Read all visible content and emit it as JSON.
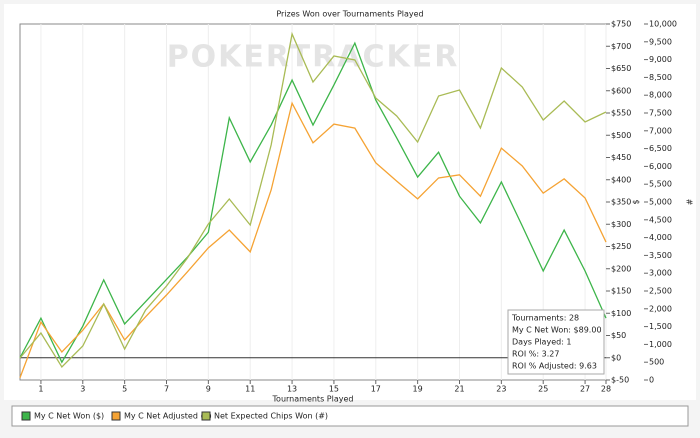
{
  "chart_data": {
    "type": "line",
    "title": "Prizes Won over Tournaments Played",
    "watermark": "POKERTRACKER",
    "x_label": "Tournaments Played",
    "y_label": "$",
    "y2_label": "#",
    "x": [
      0,
      1,
      2,
      3,
      4,
      5,
      6,
      7,
      8,
      9,
      10,
      11,
      12,
      13,
      14,
      15,
      16,
      17,
      18,
      19,
      20,
      21,
      22,
      23,
      24,
      25,
      26,
      27,
      28
    ],
    "xlim": [
      0,
      28
    ],
    "xticks": [
      1,
      3,
      5,
      7,
      9,
      11,
      13,
      15,
      17,
      19,
      21,
      23,
      25,
      27,
      28
    ],
    "ylim": [
      -50,
      750
    ],
    "yticks": [
      {
        "value": -50,
        "label": "$-50"
      },
      {
        "value": 0,
        "label": "$0"
      },
      {
        "value": 50,
        "label": "$50"
      },
      {
        "value": 100,
        "label": "$100"
      },
      {
        "value": 150,
        "label": "$150"
      },
      {
        "value": 200,
        "label": "$200"
      },
      {
        "value": 250,
        "label": "$250"
      },
      {
        "value": 300,
        "label": "$300"
      },
      {
        "value": 350,
        "label": "$350"
      },
      {
        "value": 400,
        "label": "$400"
      },
      {
        "value": 450,
        "label": "$450"
      },
      {
        "value": 500,
        "label": "$500"
      },
      {
        "value": 550,
        "label": "$550"
      },
      {
        "value": 600,
        "label": "$600"
      },
      {
        "value": 650,
        "label": "$650"
      },
      {
        "value": 700,
        "label": "$700"
      },
      {
        "value": 750,
        "label": "$750"
      }
    ],
    "y2lim": [
      0,
      10000
    ],
    "y2ticks": [
      0,
      500,
      {
        "value": 1000,
        "label": "1,000"
      },
      {
        "value": 1500,
        "label": "1,500"
      },
      {
        "value": 2000,
        "label": "2,000"
      },
      {
        "value": 2500,
        "label": "2,500"
      },
      {
        "value": 3000,
        "label": "3,000"
      },
      {
        "value": 3500,
        "label": "3,500"
      },
      {
        "value": 4000,
        "label": "4,000"
      },
      {
        "value": 4500,
        "label": "4,500"
      },
      {
        "value": 5000,
        "label": "5,000"
      },
      {
        "value": 5500,
        "label": "5,500"
      },
      {
        "value": 6000,
        "label": "6,000"
      },
      {
        "value": 6500,
        "label": "6,500"
      },
      {
        "value": 7000,
        "label": "7,000"
      },
      {
        "value": 7500,
        "label": "7,500"
      },
      {
        "value": 8000,
        "label": "8,000"
      },
      {
        "value": 8500,
        "label": "8,500"
      },
      {
        "value": 9000,
        "label": "9,000"
      },
      {
        "value": 9500,
        "label": "9,500"
      },
      {
        "value": 10000,
        "label": "10,000"
      }
    ],
    "grid": true,
    "series": [
      {
        "name": "My C Net Won ($)",
        "color": "#3db54a",
        "values": [
          0,
          89,
          -10,
          71,
          175,
          76,
          126,
          176,
          226,
          282,
          539,
          440,
          523,
          624,
          523,
          613,
          707,
          579,
          494,
          406,
          462,
          363,
          303,
          395,
          296,
          195,
          287,
          195,
          89
        ]
      },
      {
        "name": "My C Net Adjusted ($)",
        "color": "#f5a334",
        "values": [
          -45,
          80,
          13,
          62,
          121,
          40,
          92,
          141,
          193,
          247,
          287,
          238,
          377,
          572,
          483,
          525,
          516,
          438,
          397,
          357,
          404,
          411,
          363,
          471,
          431,
          370,
          402,
          359,
          260
        ]
      },
      {
        "name": "Net Expected Chips Won (#)",
        "color": "#a9bb55",
        "axis": "y2",
        "values": [
          618,
          1320,
          365,
          955,
          2135,
          870,
          1966,
          2640,
          3427,
          4382,
          5084,
          4354,
          6601,
          9719,
          8371,
          9101,
          8989,
          7921,
          7416,
          6685,
          7978,
          8146,
          7079,
          8764,
          8230,
          7303,
          7837,
          7247,
          7528
        ]
      }
    ],
    "tooltip": [
      "Tournaments: 28",
      "My C Net Won: $89.00",
      "Days Played: 1",
      "ROI %: 3.27",
      "ROI % Adjusted: 9.63"
    ]
  }
}
